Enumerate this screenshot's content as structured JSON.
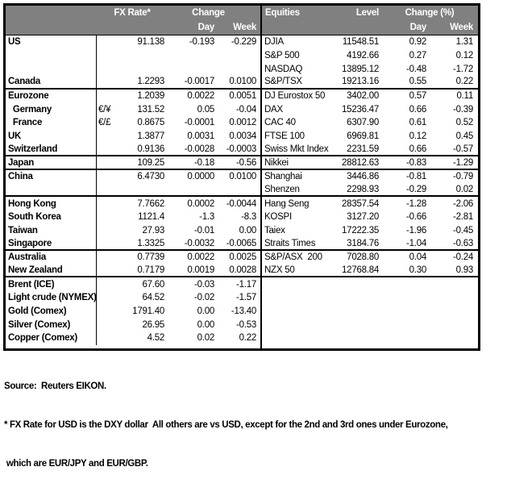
{
  "colors": {
    "header_bg": "#808080",
    "header_text": "#ffffff",
    "border": "#000000"
  },
  "fx_table": {
    "header": {
      "rate": "FX Rate*",
      "change": "Change",
      "day": "Day",
      "week": "Week"
    },
    "group_end_rows": [
      3,
      8,
      9,
      11,
      15,
      17
    ],
    "rows": [
      {
        "label": "US",
        "pair": "",
        "rate": "91.138",
        "day": "-0.193",
        "week": "-0.229"
      },
      {
        "label": "",
        "pair": "",
        "rate": "",
        "day": "",
        "week": ""
      },
      {
        "label": "",
        "pair": "",
        "rate": "",
        "day": "",
        "week": ""
      },
      {
        "label": "Canada",
        "pair": "",
        "rate": "1.2293",
        "day": "-0.0017",
        "week": "0.0100"
      },
      {
        "label": "Eurozone",
        "pair": "",
        "rate": "1.2039",
        "day": "0.0022",
        "week": "0.0051"
      },
      {
        "label": "  Germany",
        "pair": "€/¥",
        "rate": "131.52",
        "day": "0.05",
        "week": "-0.04"
      },
      {
        "label": "  France",
        "pair": "€/£",
        "rate": "0.8675",
        "day": "-0.0001",
        "week": "0.0012"
      },
      {
        "label": "UK",
        "pair": "",
        "rate": "1.3877",
        "day": "0.0031",
        "week": "0.0034"
      },
      {
        "label": "Switzerland",
        "pair": "",
        "rate": "0.9136",
        "day": "-0.0028",
        "week": "-0.0003"
      },
      {
        "label": "Japan",
        "pair": "",
        "rate": "109.25",
        "day": "-0.18",
        "week": "-0.56"
      },
      {
        "label": "China",
        "pair": "",
        "rate": "6.4730",
        "day": "0.0000",
        "week": "0.0100"
      },
      {
        "label": "",
        "pair": "",
        "rate": "",
        "day": "",
        "week": ""
      },
      {
        "label": "Hong Kong",
        "pair": "",
        "rate": "7.7662",
        "day": "0.0002",
        "week": "-0.0044"
      },
      {
        "label": "South Korea",
        "pair": "",
        "rate": "1121.4",
        "day": "-1.3",
        "week": "-8.3"
      },
      {
        "label": "Taiwan",
        "pair": "",
        "rate": "27.93",
        "day": "-0.01",
        "week": "0.00"
      },
      {
        "label": "Singapore",
        "pair": "",
        "rate": "1.3325",
        "day": "-0.0032",
        "week": "-0.0065"
      },
      {
        "label": "Australia",
        "pair": "",
        "rate": "0.7739",
        "day": "0.0022",
        "week": "0.0025"
      },
      {
        "label": "New Zealand",
        "pair": "",
        "rate": "0.7179",
        "day": "0.0019",
        "week": "0.0028"
      },
      {
        "label": "Brent (ICE)",
        "pair": "",
        "rate": "67.60",
        "day": "-0.03",
        "week": "-1.17"
      },
      {
        "label": "Light crude (NYMEX)",
        "pair": "",
        "rate": "64.52",
        "day": "-0.02",
        "week": "-1.57"
      },
      {
        "label": "Gold (Comex)",
        "pair": "",
        "rate": "1791.40",
        "day": "0.00",
        "week": "-13.40"
      },
      {
        "label": "Silver (Comex)",
        "pair": "",
        "rate": "26.95",
        "day": "0.00",
        "week": "-0.53"
      },
      {
        "label": "Copper (Comex)",
        "pair": "",
        "rate": "4.52",
        "day": "0.02",
        "week": "0.22"
      }
    ]
  },
  "equities_table": {
    "header": {
      "name": "Equities",
      "level": "Level",
      "change": "Change (%)",
      "day": "Day",
      "week": "Week"
    },
    "group_end_rows": [
      3,
      8,
      9,
      11,
      15,
      17
    ],
    "rows": [
      {
        "label": "DJIA",
        "level": "11548.51",
        "day": "0.92",
        "week": "1.31"
      },
      {
        "label": "S&P 500",
        "level": "4192.66",
        "day": "0.27",
        "week": "0.12"
      },
      {
        "label": "NASDAQ",
        "level": "13895.12",
        "day": "-0.48",
        "week": "-1.72"
      },
      {
        "label": "S&P/TSX",
        "level": "19213.16",
        "day": "0.55",
        "week": "0.22"
      },
      {
        "label": "DJ Eurostox 50",
        "level": "3402.00",
        "day": "0.57",
        "week": "0.11"
      },
      {
        "label": "DAX",
        "level": "15236.47",
        "day": "0.66",
        "week": "-0.39"
      },
      {
        "label": "CAC 40",
        "level": "6307.90",
        "day": "0.61",
        "week": "0.52"
      },
      {
        "label": "FTSE 100",
        "level": "6969.81",
        "day": "0.12",
        "week": "0.45"
      },
      {
        "label": "Swiss Mkt Index",
        "level": "2231.59",
        "day": "0.66",
        "week": "-0.57"
      },
      {
        "label": "Nikkei",
        "level": "28812.63",
        "day": "-0.83",
        "week": "-1.29"
      },
      {
        "label": "Shanghai",
        "level": "3446.86",
        "day": "-0.81",
        "week": "-0.79"
      },
      {
        "label": "Shenzen",
        "level": "2298.93",
        "day": "-0.29",
        "week": "0.02"
      },
      {
        "label": "Hang Seng",
        "level": "28357.54",
        "day": "-1.28",
        "week": "-2.06"
      },
      {
        "label": "KOSPI",
        "level": "3127.20",
        "day": "-0.66",
        "week": "-2.81"
      },
      {
        "label": "Taiex",
        "level": "17222.35",
        "day": "-1.96",
        "week": "-0.45"
      },
      {
        "label": "Straits Times",
        "level": "3184.76",
        "day": "-1.04",
        "week": "-0.63"
      },
      {
        "label": "S&P/ASX  200",
        "level": "7028.80",
        "day": "0.04",
        "week": "-0.24"
      },
      {
        "label": "NZX 50",
        "level": "12768.84",
        "day": "0.30",
        "week": "0.93"
      }
    ]
  },
  "footnotes": {
    "source": "Source:  Reuters EIKON.",
    "fx_note_line1": "* FX Rate for USD is the DXY dollar  All others are vs USD, except for the 2nd and 3rd ones under Eurozone,",
    "fx_note_line2": " which are EUR/JPY and EUR/GBP."
  }
}
